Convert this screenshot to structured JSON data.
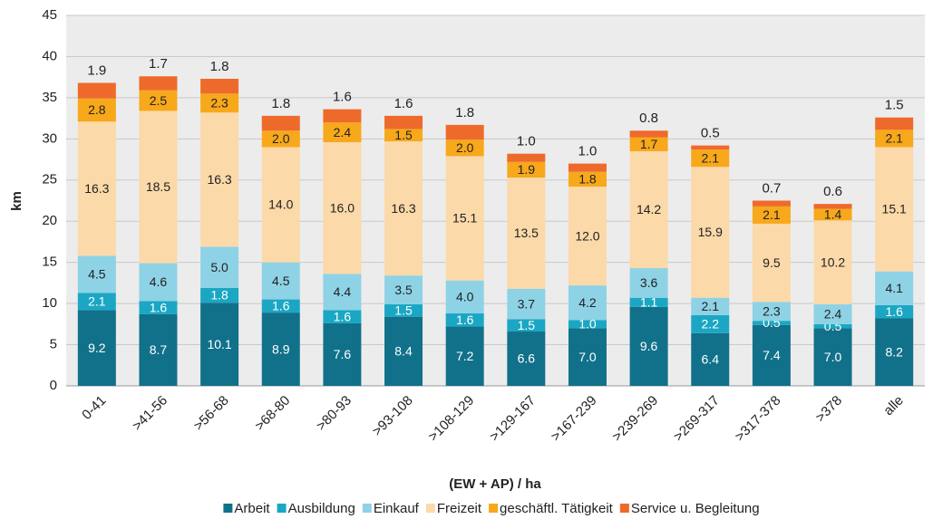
{
  "chart_data": {
    "type": "stacked_bar",
    "ylabel": "km",
    "xlabel": "(EW + AP) / ha",
    "categories": [
      "0-41",
      ">41-56",
      ">56-68",
      ">68-80",
      ">80-93",
      ">93-108",
      ">108-129",
      ">129-167",
      ">167-239",
      ">239-269",
      ">269-317",
      ">317-378",
      ">378",
      "alle"
    ],
    "ylim": [
      0,
      45
    ],
    "yticks": [
      0,
      5,
      10,
      15,
      20,
      25,
      30,
      35,
      40,
      45
    ],
    "grid": true,
    "legend": "bottom",
    "series": [
      {
        "name": "Arbeit",
        "color": "#11718a",
        "values": [
          9.2,
          8.7,
          10.1,
          8.9,
          7.6,
          8.4,
          7.2,
          6.6,
          7.0,
          9.6,
          6.4,
          7.4,
          7.0,
          8.2
        ],
        "value_labels": [
          "9.2",
          "8.7",
          "10.1",
          "8.9",
          "7.6",
          "8.4",
          "7.2",
          "6.6",
          "7.0",
          "9.6",
          "6.4",
          "7.4",
          "7.0",
          "8.2"
        ]
      },
      {
        "name": "Ausbildung",
        "color": "#1ba7c4",
        "values": [
          2.1,
          1.6,
          1.8,
          1.6,
          1.6,
          1.5,
          1.6,
          1.5,
          1.0,
          1.1,
          2.2,
          0.5,
          0.5,
          1.6
        ],
        "value_labels": [
          "2.1",
          "1.6",
          "1.8",
          "1.6",
          "1.6",
          "1.5",
          "1.6",
          "1.5",
          "1.0",
          "1.1",
          "2.2",
          "0.5",
          "0.5",
          "1.6"
        ]
      },
      {
        "name": "Einkauf",
        "color": "#8ed2e6",
        "values": [
          4.5,
          4.6,
          5.0,
          4.5,
          4.4,
          3.5,
          4.0,
          3.7,
          4.2,
          3.6,
          2.1,
          2.3,
          2.4,
          4.1
        ],
        "value_labels": [
          "4.5",
          "4.6",
          "5.0",
          "4.5",
          "4.4",
          "3.5",
          "4.0",
          "3.7",
          "4.2",
          "3.6",
          "2.1",
          "2.3",
          "2.4",
          "4.1"
        ]
      },
      {
        "name": "Freizeit",
        "color": "#fcd9a9",
        "values": [
          16.3,
          18.5,
          16.3,
          14.0,
          16.0,
          16.3,
          15.1,
          13.5,
          12.0,
          14.2,
          15.9,
          9.5,
          10.2,
          15.1
        ],
        "value_labels": [
          "16.3",
          "18.5",
          "16.3",
          "14.0",
          "16.0",
          "16.3",
          "15.1",
          "13.5",
          "12.0",
          "14.2",
          "15.9",
          "9.5",
          "10.2",
          "15.1"
        ]
      },
      {
        "name": "geschäftl. Tätigkeit",
        "color": "#f7a81b",
        "values": [
          2.8,
          2.5,
          2.3,
          2.0,
          2.4,
          1.5,
          2.0,
          1.9,
          1.8,
          1.7,
          2.1,
          2.1,
          1.4,
          2.1
        ],
        "value_labels": [
          "2.8",
          "2.5",
          "2.3",
          "2.0",
          "2.4",
          "1.5",
          "2.0",
          "1.9",
          "1.8",
          "1.7",
          "2.1",
          "2.1",
          "1.4",
          "2.1"
        ]
      },
      {
        "name": "Service u. Begleitung",
        "color": "#ee6a2b",
        "values": [
          1.9,
          1.7,
          1.8,
          1.8,
          1.6,
          1.6,
          1.8,
          1.0,
          1.0,
          0.8,
          0.5,
          0.7,
          0.6,
          1.5
        ],
        "value_labels": [
          "1.9",
          "1.7",
          "1.8",
          "1.8",
          "1.6",
          "1.6",
          "1.8",
          "1.0",
          "1.0",
          "0.8",
          "0.5",
          "0.7",
          "0.6",
          "1.5"
        ]
      }
    ]
  }
}
